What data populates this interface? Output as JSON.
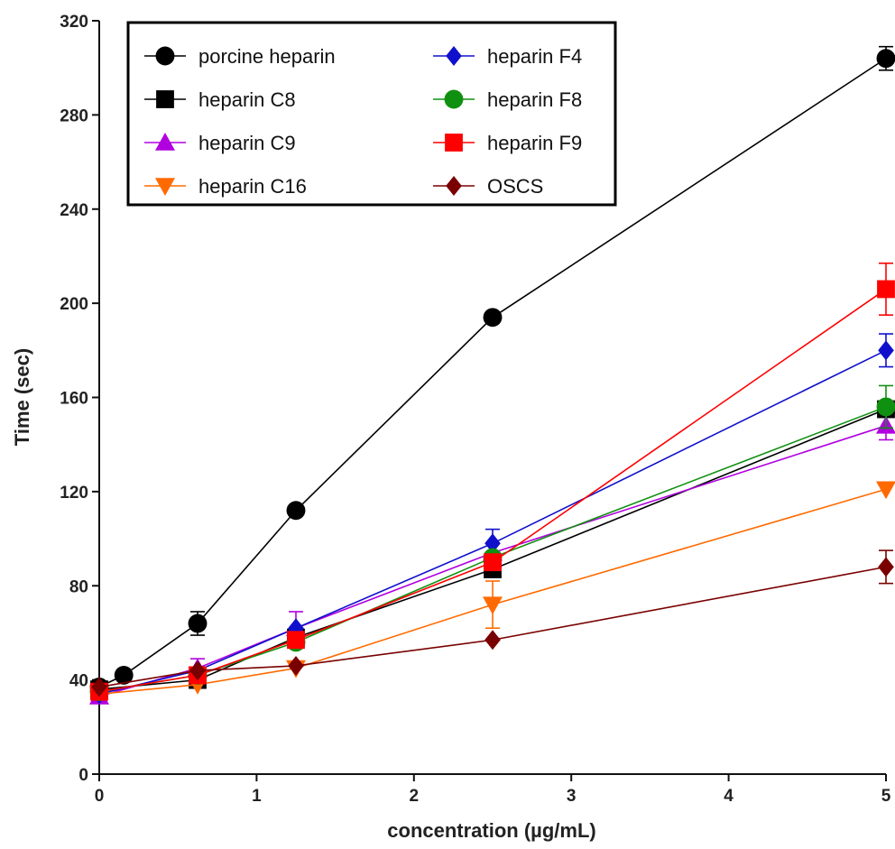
{
  "chart_data": {
    "type": "line",
    "xlabel": "concentration (µg/mL)",
    "ylabel": "Time (sec)",
    "xlim": [
      0,
      5
    ],
    "ylim": [
      0,
      320
    ],
    "xticks": [
      0,
      1,
      2,
      3,
      4,
      5
    ],
    "yticks": [
      0,
      40,
      80,
      120,
      160,
      200,
      240,
      280,
      320
    ],
    "grid": false,
    "legend_position": "top-left",
    "legend_columns": 2,
    "series": [
      {
        "name": "porcine heparin",
        "color": "#000000",
        "marker": "circle",
        "x": [
          0,
          0.156,
          0.625,
          1.25,
          2.5,
          5
        ],
        "y": [
          37,
          42,
          64,
          112,
          194,
          304
        ],
        "err": [
          0,
          0,
          5,
          0,
          0,
          5
        ]
      },
      {
        "name": "heparin C8",
        "color": "#000000",
        "marker": "square",
        "x": [
          0,
          0.625,
          1.25,
          2.5,
          5
        ],
        "y": [
          36,
          40,
          58,
          87,
          155
        ],
        "err": [
          0,
          0,
          0,
          0,
          0
        ]
      },
      {
        "name": "heparin C9",
        "color": "#b000e0",
        "marker": "triangle-up",
        "x": [
          0,
          0.625,
          1.25,
          2.5,
          5
        ],
        "y": [
          33,
          45,
          62,
          94,
          148
        ],
        "err": [
          0,
          4,
          7,
          0,
          6
        ]
      },
      {
        "name": "heparin C16",
        "color": "#ff6a00",
        "marker": "triangle-down",
        "x": [
          0,
          0.625,
          1.25,
          2.5,
          5
        ],
        "y": [
          34,
          38,
          45,
          72,
          121
        ],
        "err": [
          0,
          0,
          0,
          10,
          0
        ]
      },
      {
        "name": "heparin F4",
        "color": "#1010cc",
        "marker": "diamond",
        "x": [
          0,
          0.625,
          1.25,
          2.5,
          5
        ],
        "y": [
          34,
          44,
          62,
          98,
          180
        ],
        "err": [
          0,
          0,
          0,
          6,
          7
        ]
      },
      {
        "name": "heparin F8",
        "color": "#109010",
        "marker": "circle",
        "x": [
          0,
          0.625,
          1.25,
          2.5,
          5
        ],
        "y": [
          35,
          42,
          56,
          92,
          156
        ],
        "err": [
          0,
          0,
          0,
          0,
          9
        ]
      },
      {
        "name": "heparin F9",
        "color": "#ff0000",
        "marker": "square",
        "x": [
          0,
          0.625,
          1.25,
          2.5,
          5
        ],
        "y": [
          35,
          42,
          57,
          90,
          206
        ],
        "err": [
          0,
          0,
          0,
          0,
          11
        ]
      },
      {
        "name": "OSCS",
        "color": "#7a0000",
        "marker": "diamond",
        "x": [
          0,
          0.625,
          1.25,
          2.5,
          5
        ],
        "y": [
          37,
          44,
          46,
          57,
          88
        ],
        "err": [
          0,
          0,
          0,
          0,
          7
        ]
      }
    ]
  }
}
